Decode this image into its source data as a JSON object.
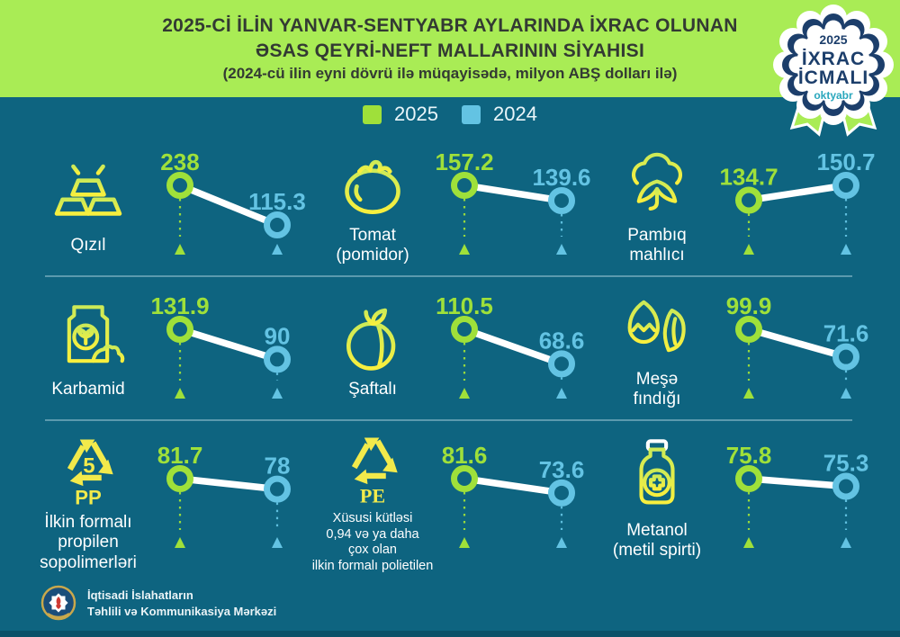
{
  "header": {
    "title_line1": "2025-Cİ İLİN YANVAR-SENTYABR AYLARINDA İXRAC OLUNAN",
    "title_line2": "ƏSAS QEYRİ-NEFT MALLARININ SİYAHISI",
    "subtitle": "(2024-cü ilin eyni dövrü ilə müqayisədə, milyon ABŞ dolları ilə)"
  },
  "badge": {
    "year": "2025",
    "line1": "İXRAC",
    "line2": "İCMALI",
    "month": "oktyabr"
  },
  "legend": [
    {
      "label": "2025",
      "color": "#9fe03a"
    },
    {
      "label": "2024",
      "color": "#63c3e3"
    }
  ],
  "items": [
    {
      "icon": "gold-bars-icon",
      "label_lines": [
        "Qızıl"
      ],
      "v2025": 238,
      "v2024": 115.3
    },
    {
      "icon": "tomato-icon",
      "label_lines": [
        "Tomat",
        "(pomidor)"
      ],
      "v2025": 157.2,
      "v2024": 139.6
    },
    {
      "icon": "cotton-icon",
      "label_lines": [
        "Pambıq",
        "mahlıcı"
      ],
      "v2025": 134.7,
      "v2024": 150.7
    },
    {
      "icon": "fertilizer-bag-icon",
      "label_lines": [
        "Karbamid"
      ],
      "v2025": 131.9,
      "v2024": 90
    },
    {
      "icon": "peach-icon",
      "label_lines": [
        "Şaftalı"
      ],
      "v2025": 110.5,
      "v2024": 68.6
    },
    {
      "icon": "hazelnut-icon",
      "label_lines": [
        "Meşə",
        "fındığı"
      ],
      "v2025": 99.9,
      "v2024": 71.6
    },
    {
      "icon": "recycling-pp-icon",
      "label_lines": [
        "İlkin formalı",
        "propilen",
        "sopolimerləri"
      ],
      "v2025": 81.7,
      "v2024": 78
    },
    {
      "icon": "recycling-pe-icon",
      "label_lines": [
        "Xüsusi kütləsi",
        "0,94 və ya daha",
        "çox olan",
        "ilkin formalı polietilen"
      ],
      "v2025": 81.6,
      "v2024": 73.6
    },
    {
      "icon": "methanol-bottle-icon",
      "label_lines": [
        "Metanol",
        "(metil spirti)"
      ],
      "v2025": 75.8,
      "v2024": 75.3
    }
  ],
  "footer": {
    "org_line1": "İqtisadi İslahatların",
    "org_line2": "Təhlili və Kommunikasiya Mərkəzi"
  },
  "colors": {
    "background": "#0e6480",
    "header_background": "#a9ec55",
    "title_text": "#333a33",
    "green_2025": "#9fe03a",
    "blue_2024": "#63c3e3",
    "connector_line": "#ffffff",
    "badge_navy": "#1c3e6b",
    "badge_month_teal": "#2aa7bd",
    "icon_yellow": "#f2ea4b"
  },
  "chart_data": {
    "type": "line",
    "subtype": "slopegraph-small-multiples",
    "title": "2025-ci ilin yanvar-sentyabr aylarında ixrac olunan əsas qeyri-neft mallarının siyahısı",
    "subtitle": "2024-cü ilin eyni dövrü ilə müqayisədə, milyon ABŞ dolları ilə",
    "categories": [
      "2025",
      "2024"
    ],
    "units": "milyon ABŞ dolları",
    "legend_position": "top",
    "grid": false,
    "series": [
      {
        "name": "Qızıl",
        "values": [
          238,
          115.3
        ]
      },
      {
        "name": "Tomat (pomidor)",
        "values": [
          157.2,
          139.6
        ]
      },
      {
        "name": "Pambıq mahlıcı",
        "values": [
          134.7,
          150.7
        ]
      },
      {
        "name": "Karbamid",
        "values": [
          131.9,
          90
        ]
      },
      {
        "name": "Şaftalı",
        "values": [
          110.5,
          68.6
        ]
      },
      {
        "name": "Meşə fındığı",
        "values": [
          99.9,
          71.6
        ]
      },
      {
        "name": "İlkin formalı propilen sopolimerləri",
        "values": [
          81.7,
          78
        ]
      },
      {
        "name": "Xüsusi kütləsi 0,94 və ya daha çox olan ilkin formalı polietilen",
        "values": [
          81.6,
          73.6
        ]
      },
      {
        "name": "Metanol (metil spirti)",
        "values": [
          75.8,
          75.3
        ]
      }
    ]
  }
}
